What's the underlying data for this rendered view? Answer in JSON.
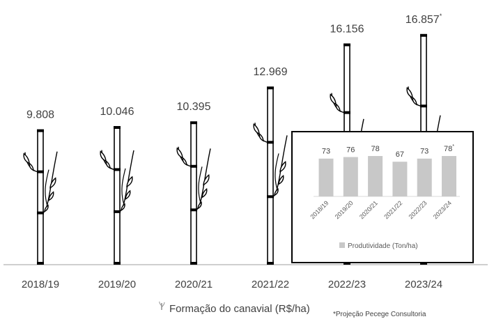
{
  "chart_data": [
    {
      "type": "bar",
      "categories": [
        "2018/19",
        "2019/20",
        "2020/21",
        "2021/22",
        "2022/23",
        "2023/24"
      ],
      "series": [
        {
          "name": "Formação do canavial (R$/ha)",
          "values": [
            9808,
            10046,
            10395,
            12969,
            16156,
            16857
          ],
          "labels": [
            "9.808",
            "10.046",
            "10.395",
            "12.969",
            "16.156",
            "16.857"
          ]
        }
      ],
      "projection_marker": "*",
      "legend": "bottom",
      "grid": false,
      "mark_style": "sugarcane-stalk"
    },
    {
      "type": "bar",
      "categories": [
        "2018/19",
        "2019/20",
        "2020/21",
        "2021/22",
        "2022/23",
        "2023/24"
      ],
      "series": [
        {
          "name": "Produtividade (Ton/ha)",
          "values": [
            73,
            76,
            78,
            67,
            73,
            78
          ],
          "labels": [
            "73",
            "76",
            "78",
            "67",
            "73",
            "78"
          ]
        }
      ],
      "projection_marker": "*",
      "legend": "bottom",
      "grid": false,
      "bar_color": "#c8c8c8"
    }
  ],
  "footnote": "*Projeção Pecege Consultoria",
  "colors": {
    "text": "#404040",
    "axis": "#bfbfbf",
    "inset_bar": "#c8c8c8",
    "stalk": "#000000"
  }
}
